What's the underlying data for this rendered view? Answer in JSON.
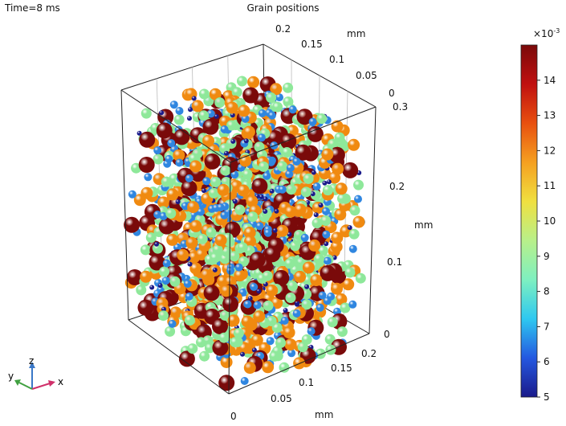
{
  "header": {
    "time_label": "Time=8 ms",
    "title": "Grain positions"
  },
  "chart_data": {
    "type": "scatter",
    "subtype": "3d-spheres",
    "title": "Grain positions",
    "axes": {
      "x": {
        "unit": "mm",
        "ticks": [
          "0",
          "0.05",
          "0.1",
          "0.15",
          "0.2"
        ],
        "range": [
          0,
          0.2
        ]
      },
      "y": {
        "unit": "mm",
        "ticks": [
          "0",
          "0.05",
          "0.1",
          "0.15",
          "0.2"
        ],
        "range": [
          0,
          0.2
        ]
      },
      "z": {
        "unit": "mm",
        "ticks": [
          "0",
          "0.1",
          "0.2",
          "0.3"
        ],
        "range": [
          0,
          0.3
        ]
      }
    },
    "colorbar": {
      "multiplier": "×10",
      "exponent": "-3",
      "ticks": [
        5,
        6,
        7,
        8,
        9,
        10,
        11,
        12,
        13,
        14
      ],
      "range": [
        5,
        15
      ],
      "colormap": [
        "#1a1a8a",
        "#2458e0",
        "#2ec8f0",
        "#7ef0c0",
        "#b8f08a",
        "#f0e040",
        "#f5a020",
        "#e85010",
        "#c01010",
        "#7a0a0a"
      ]
    },
    "grain_classes": [
      {
        "value": 5.0,
        "color": "#1a1a8a"
      },
      {
        "value": 7.2,
        "color": "#2f86e0"
      },
      {
        "value": 9.8,
        "color": "#8ee89a"
      },
      {
        "value": 12.2,
        "color": "#f08a10"
      },
      {
        "value": 15.0,
        "color": "#7a0a0a"
      }
    ]
  },
  "triad": {
    "x_label": "x",
    "y_label": "y",
    "z_label": "z"
  }
}
